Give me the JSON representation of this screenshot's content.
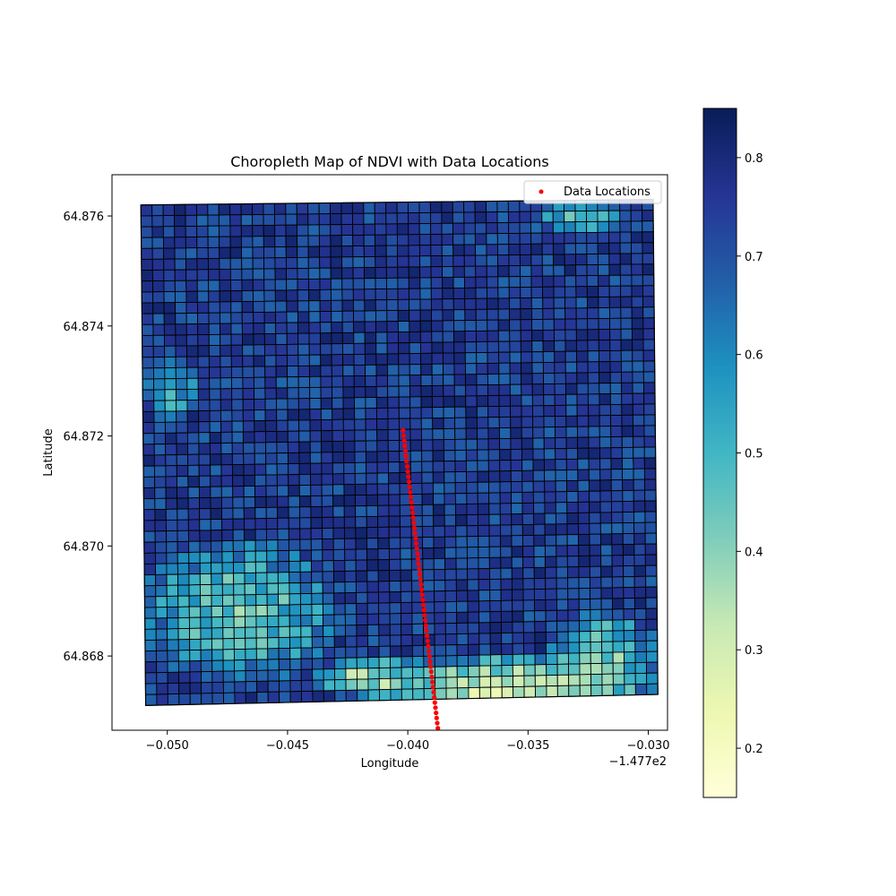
{
  "chart_data": {
    "type": "heatmap",
    "title": "Choropleth Map of NDVI with Data Locations",
    "xlabel": "Longitude",
    "ylabel": "Latitude",
    "x_offset_label": "−1.477e2",
    "xlim": [
      -0.0523,
      -0.0292
    ],
    "ylim": [
      64.86665,
      64.87675
    ],
    "x_ticks": [
      {
        "value": -0.05,
        "label": "−0.050"
      },
      {
        "value": -0.045,
        "label": "−0.045"
      },
      {
        "value": -0.04,
        "label": "−0.040"
      },
      {
        "value": -0.035,
        "label": "−0.035"
      },
      {
        "value": -0.03,
        "label": "−0.030"
      }
    ],
    "y_ticks": [
      {
        "value": 64.868,
        "label": "64.868"
      },
      {
        "value": 64.87,
        "label": "64.870"
      },
      {
        "value": 64.872,
        "label": "64.872"
      },
      {
        "value": 64.874,
        "label": "64.874"
      },
      {
        "value": 64.876,
        "label": "64.876"
      }
    ],
    "region_corners": [
      {
        "x": -0.0511,
        "y": 64.8762
      },
      {
        "x": -0.0298,
        "y": 64.8763
      },
      {
        "x": -0.0296,
        "y": 64.8673
      },
      {
        "x": -0.0509,
        "y": 64.8671
      }
    ],
    "colorbar": {
      "colormap": "YlGnBu",
      "range": [
        0.15,
        0.85
      ],
      "ticks": [
        {
          "value": 0.2,
          "label": "0.2"
        },
        {
          "value": 0.3,
          "label": "0.3"
        },
        {
          "value": 0.4,
          "label": "0.4"
        },
        {
          "value": 0.5,
          "label": "0.5"
        },
        {
          "value": 0.6,
          "label": "0.6"
        },
        {
          "value": 0.7,
          "label": "0.7"
        },
        {
          "value": 0.8,
          "label": "0.8"
        }
      ],
      "stops": [
        "#ffffd9",
        "#edf8b1",
        "#c7e9b4",
        "#7fcdbb",
        "#41b6c4",
        "#1d91c0",
        "#225ea8",
        "#253494",
        "#081d58"
      ]
    },
    "series": [
      {
        "name": "Data Locations",
        "color": "#ff0000",
        "x": [
          -0.0402,
          -0.0401,
          -0.0399,
          -0.0397,
          -0.0394,
          -0.0392,
          -0.039,
          -0.0388,
          -0.0387,
          -0.0385,
          -0.0384,
          -0.0382
        ],
        "y": [
          64.8721,
          64.8714,
          64.8707,
          64.87,
          64.8693,
          64.8686,
          64.8679,
          64.8672,
          64.8665,
          64.8688,
          64.8684,
          64.8677
        ]
      }
    ],
    "legend_position": "upper-right",
    "ndvi_pattern": {
      "background_value": 0.74,
      "low_zones": [
        {
          "x": -0.036,
          "y": 64.8674,
          "rx": 0.006,
          "ry": 0.0007,
          "value": 0.3
        },
        {
          "x": -0.032,
          "y": 64.8678,
          "rx": 0.0025,
          "ry": 0.0012,
          "value": 0.4
        },
        {
          "x": -0.047,
          "y": 64.8688,
          "rx": 0.0045,
          "ry": 0.0014,
          "value": 0.45
        },
        {
          "x": -0.0498,
          "y": 64.8728,
          "rx": 0.0012,
          "ry": 0.0006,
          "value": 0.52
        },
        {
          "x": -0.033,
          "y": 64.876,
          "rx": 0.002,
          "ry": 0.0004,
          "value": 0.48
        },
        {
          "x": -0.0415,
          "y": 64.8676,
          "rx": 0.0025,
          "ry": 0.0004,
          "value": 0.35
        }
      ]
    }
  }
}
